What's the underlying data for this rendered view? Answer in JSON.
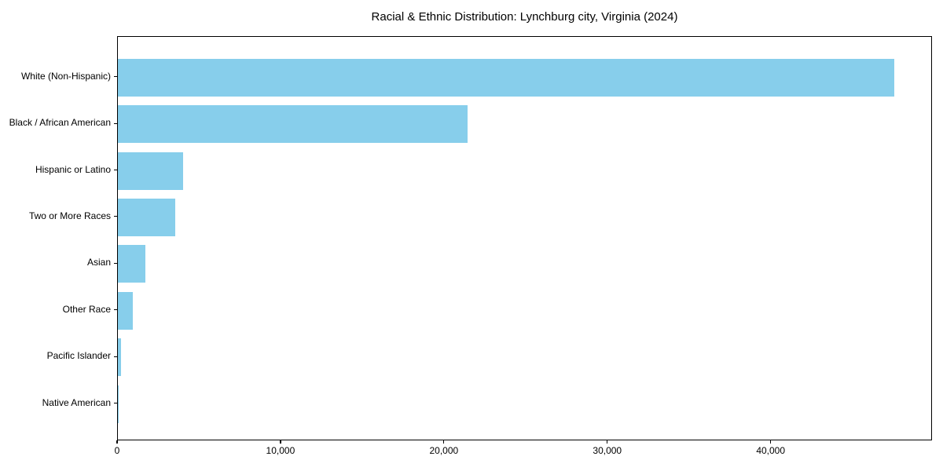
{
  "chart_data": {
    "type": "bar",
    "orientation": "horizontal",
    "title": "Racial & Ethnic Distribution: Lynchburg city, Virginia (2024)",
    "categories": [
      "White (Non-Hispanic)",
      "Black / African American",
      "Hispanic or Latino",
      "Two or More Races",
      "Asian",
      "Other Race",
      "Pacific Islander",
      "Native American"
    ],
    "values": [
      47500,
      21400,
      4000,
      3500,
      1700,
      930,
      190,
      50
    ],
    "xlabel": "",
    "ylabel": "",
    "xlim": [
      0,
      49875
    ],
    "x_ticks": [
      0,
      10000,
      20000,
      30000,
      40000
    ],
    "x_tick_labels": [
      "0",
      "10,000",
      "20,000",
      "30,000",
      "40,000"
    ],
    "bar_color": "#87CEEB",
    "axis_color": "#000000",
    "background_color": "#ffffff",
    "grid": false,
    "legend": false
  }
}
